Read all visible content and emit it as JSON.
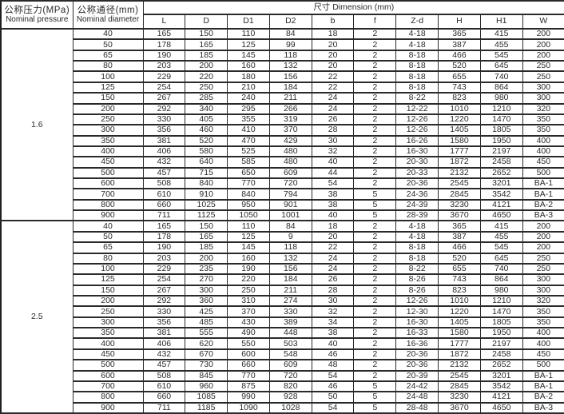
{
  "header": {
    "pressure_zh": "公称压力(MPa)",
    "pressure_en": "Nominal pressure",
    "diameter_zh": "公称通径(mm)",
    "diameter_en": "Nominal diameter",
    "dimension_title": "尺寸  Dimension (mm)",
    "columns": [
      "L",
      "D",
      "D1",
      "D2",
      "b",
      "f",
      "Z-d",
      "H",
      "H1",
      "W"
    ]
  },
  "colors": {
    "border": "#2a2a2a",
    "text": "#2a2a2a",
    "background": "#ffffff"
  },
  "sections": [
    {
      "pressure": "1.6",
      "rows": [
        {
          "dn": "40",
          "values": [
            "165",
            "150",
            "110",
            "84",
            "18",
            "2",
            "4-18",
            "365",
            "415",
            "200"
          ]
        },
        {
          "dn": "50",
          "values": [
            "178",
            "165",
            "125",
            "99",
            "20",
            "2",
            "4-18",
            "387",
            "455",
            "200"
          ]
        },
        {
          "dn": "65",
          "values": [
            "190",
            "185",
            "145",
            "118",
            "20",
            "2",
            "8-18",
            "466",
            "545",
            "200"
          ]
        },
        {
          "dn": "80",
          "values": [
            "203",
            "200",
            "160",
            "132",
            "20",
            "2",
            "8-18",
            "520",
            "645",
            "250"
          ]
        },
        {
          "dn": "100",
          "values": [
            "229",
            "220",
            "180",
            "156",
            "22",
            "2",
            "8-18",
            "655",
            "740",
            "250"
          ]
        },
        {
          "dn": "125",
          "values": [
            "254",
            "250",
            "210",
            "184",
            "22",
            "2",
            "8-18",
            "743",
            "864",
            "300"
          ]
        },
        {
          "dn": "150",
          "values": [
            "267",
            "285",
            "240",
            "211",
            "24",
            "2",
            "8-22",
            "823",
            "980",
            "300"
          ]
        },
        {
          "dn": "200",
          "values": [
            "292",
            "340",
            "295",
            "266",
            "24",
            "2",
            "12-22",
            "1010",
            "1210",
            "320"
          ]
        },
        {
          "dn": "250",
          "values": [
            "330",
            "405",
            "355",
            "319",
            "26",
            "2",
            "12-26",
            "1220",
            "1470",
            "350"
          ]
        },
        {
          "dn": "300",
          "values": [
            "356",
            "460",
            "410",
            "370",
            "28",
            "2",
            "12-26",
            "1405",
            "1805",
            "350"
          ]
        },
        {
          "dn": "350",
          "values": [
            "381",
            "520",
            "470",
            "429",
            "30",
            "2",
            "16-26",
            "1580",
            "1950",
            "400"
          ]
        },
        {
          "dn": "400",
          "values": [
            "406",
            "580",
            "525",
            "480",
            "32",
            "2",
            "16-30",
            "1777",
            "2197",
            "400"
          ]
        },
        {
          "dn": "450",
          "values": [
            "432",
            "640",
            "585",
            "480",
            "40",
            "2",
            "20-30",
            "1872",
            "2458",
            "450"
          ]
        },
        {
          "dn": "500",
          "values": [
            "457",
            "715",
            "650",
            "609",
            "44",
            "2",
            "20-33",
            "2132",
            "2652",
            "500"
          ]
        },
        {
          "dn": "600",
          "values": [
            "508",
            "840",
            "770",
            "720",
            "54",
            "2",
            "20-36",
            "2545",
            "3201",
            "BA-1"
          ]
        },
        {
          "dn": "700",
          "values": [
            "610",
            "910",
            "840",
            "794",
            "38",
            "5",
            "24-36",
            "2845",
            "3542",
            "BA-1"
          ]
        },
        {
          "dn": "800",
          "values": [
            "660",
            "1025",
            "950",
            "901",
            "38",
            "5",
            "24-39",
            "3230",
            "4121",
            "BA-2"
          ]
        },
        {
          "dn": "900",
          "values": [
            "711",
            "1125",
            "1050",
            "1001",
            "40",
            "5",
            "28-39",
            "3670",
            "4650",
            "BA-3"
          ]
        }
      ]
    },
    {
      "pressure": "2.5",
      "rows": [
        {
          "dn": "40",
          "values": [
            "165",
            "150",
            "110",
            "84",
            "18",
            "2",
            "4-18",
            "365",
            "415",
            "200"
          ]
        },
        {
          "dn": "50",
          "values": [
            "178",
            "165",
            "125",
            "9",
            "20",
            "2",
            "4-18",
            "387",
            "455",
            "200"
          ]
        },
        {
          "dn": "65",
          "values": [
            "190",
            "185",
            "145",
            "118",
            "22",
            "2",
            "8-18",
            "466",
            "545",
            "200"
          ]
        },
        {
          "dn": "80",
          "values": [
            "203",
            "200",
            "160",
            "132",
            "24",
            "2",
            "8-18",
            "520",
            "645",
            "250"
          ]
        },
        {
          "dn": "100",
          "values": [
            "229",
            "235",
            "190",
            "156",
            "24",
            "2",
            "8-22",
            "655",
            "740",
            "250"
          ]
        },
        {
          "dn": "125",
          "values": [
            "254",
            "270",
            "220",
            "184",
            "26",
            "2",
            "8-26",
            "743",
            "864",
            "300"
          ]
        },
        {
          "dn": "150",
          "values": [
            "267",
            "300",
            "250",
            "211",
            "28",
            "2",
            "8-26",
            "823",
            "980",
            "300"
          ]
        },
        {
          "dn": "200",
          "values": [
            "292",
            "360",
            "310",
            "274",
            "30",
            "2",
            "12-26",
            "1010",
            "1210",
            "320"
          ]
        },
        {
          "dn": "250",
          "values": [
            "330",
            "425",
            "370",
            "330",
            "32",
            "2",
            "12-30",
            "1220",
            "1470",
            "350"
          ]
        },
        {
          "dn": "300",
          "values": [
            "356",
            "485",
            "430",
            "389",
            "34",
            "2",
            "16-30",
            "1405",
            "1805",
            "350"
          ]
        },
        {
          "dn": "350",
          "values": [
            "381",
            "555",
            "490",
            "448",
            "38",
            "2",
            "16-33",
            "1580",
            "1950",
            "400"
          ]
        },
        {
          "dn": "400",
          "values": [
            "406",
            "620",
            "550",
            "503",
            "40",
            "2",
            "16-36",
            "1777",
            "2197",
            "400"
          ]
        },
        {
          "dn": "450",
          "values": [
            "432",
            "670",
            "600",
            "548",
            "46",
            "2",
            "20-36",
            "1872",
            "2458",
            "450"
          ]
        },
        {
          "dn": "500",
          "values": [
            "457",
            "730",
            "660",
            "609",
            "48",
            "2",
            "20-36",
            "2132",
            "2652",
            "500"
          ]
        },
        {
          "dn": "600",
          "values": [
            "508",
            "845",
            "770",
            "720",
            "54",
            "2",
            "20-39",
            "2545",
            "3201",
            "BA-1"
          ]
        },
        {
          "dn": "700",
          "values": [
            "610",
            "960",
            "875",
            "820",
            "46",
            "5",
            "24-42",
            "2845",
            "3542",
            "BA-1"
          ]
        },
        {
          "dn": "800",
          "values": [
            "660",
            "1085",
            "990",
            "928",
            "50",
            "5",
            "24-48",
            "3230",
            "4121",
            "BA-2"
          ]
        },
        {
          "dn": "900",
          "values": [
            "711",
            "1185",
            "1090",
            "1028",
            "54",
            "5",
            "28-48",
            "3670",
            "4650",
            "BA-3"
          ]
        }
      ]
    }
  ]
}
